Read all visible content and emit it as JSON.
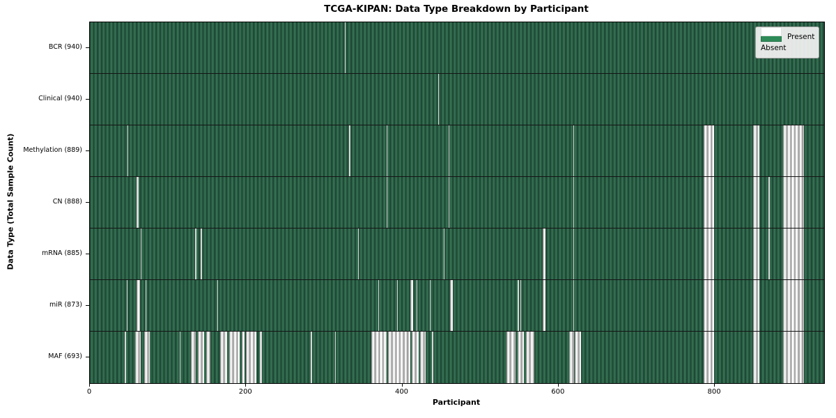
{
  "chart_data": {
    "type": "heatmap",
    "title": "TCGA-KIPAN: Data Type Breakdown by Participant",
    "xlabel": "Participant",
    "ylabel": "Data Type (Total Sample Count)",
    "x_range": [
      0,
      940
    ],
    "x_ticks": [
      0,
      200,
      400,
      600,
      800
    ],
    "grid": false,
    "legend": {
      "position": "upper right",
      "present": "Present",
      "absent": "Absent"
    },
    "colors": {
      "present": "#2e8b57",
      "absent": "#ffffff",
      "row_separator": "#141414"
    },
    "rows": [
      {
        "label": "BCR (940)",
        "data_type": "BCR",
        "total_sample_count": 940,
        "absent_ranges": [
          [
            326,
            327
          ]
        ]
      },
      {
        "label": "Clinical (940)",
        "data_type": "Clinical",
        "total_sample_count": 940,
        "absent_ranges": [
          [
            446,
            447
          ]
        ]
      },
      {
        "label": "Methylation (889)",
        "data_type": "Methylation",
        "total_sample_count": 889,
        "absent_ranges": [
          [
            48,
            49
          ],
          [
            332,
            333
          ],
          [
            380,
            381
          ],
          [
            459,
            460
          ],
          [
            619,
            620
          ],
          [
            786,
            799
          ],
          [
            849,
            857
          ],
          [
            887,
            914
          ]
        ]
      },
      {
        "label": "CN (888)",
        "data_type": "CN",
        "total_sample_count": 888,
        "absent_ranges": [
          [
            60,
            62
          ],
          [
            380,
            381
          ],
          [
            459,
            460
          ],
          [
            619,
            620
          ],
          [
            786,
            799
          ],
          [
            849,
            857
          ],
          [
            869,
            870
          ],
          [
            887,
            914
          ]
        ]
      },
      {
        "label": "mRNA (885)",
        "data_type": "mRNA",
        "total_sample_count": 885,
        "absent_ranges": [
          [
            65,
            66
          ],
          [
            135,
            136
          ],
          [
            142,
            143
          ],
          [
            343,
            344
          ],
          [
            453,
            454
          ],
          [
            580,
            583
          ],
          [
            619,
            620
          ],
          [
            786,
            799
          ],
          [
            849,
            857
          ],
          [
            869,
            870
          ],
          [
            887,
            914
          ]
        ]
      },
      {
        "label": "miR (873)",
        "data_type": "miR",
        "total_sample_count": 873,
        "absent_ranges": [
          [
            47,
            48
          ],
          [
            60,
            64
          ],
          [
            71,
            72
          ],
          [
            163,
            164
          ],
          [
            369,
            370
          ],
          [
            393,
            394
          ],
          [
            410,
            414
          ],
          [
            418,
            419
          ],
          [
            435,
            436
          ],
          [
            461,
            465
          ],
          [
            548,
            549
          ],
          [
            551,
            552
          ],
          [
            580,
            583
          ],
          [
            619,
            620
          ],
          [
            786,
            799
          ],
          [
            849,
            857
          ],
          [
            887,
            914
          ]
        ]
      },
      {
        "label": "MAF (693)",
        "data_type": "MAF",
        "total_sample_count": 693,
        "absent_ranges": [
          [
            45,
            46
          ],
          [
            58,
            65
          ],
          [
            70,
            77
          ],
          [
            115,
            116
          ],
          [
            129,
            136
          ],
          [
            138,
            146
          ],
          [
            149,
            154
          ],
          [
            167,
            176
          ],
          [
            178,
            192
          ],
          [
            194,
            198
          ],
          [
            200,
            213
          ],
          [
            218,
            220
          ],
          [
            283,
            284
          ],
          [
            314,
            315
          ],
          [
            360,
            380
          ],
          [
            382,
            410
          ],
          [
            412,
            421
          ],
          [
            423,
            430
          ],
          [
            438,
            439
          ],
          [
            533,
            545
          ],
          [
            548,
            556
          ],
          [
            558,
            569
          ],
          [
            614,
            620
          ],
          [
            621,
            629
          ],
          [
            786,
            799
          ],
          [
            849,
            857
          ],
          [
            887,
            914
          ]
        ]
      }
    ]
  }
}
